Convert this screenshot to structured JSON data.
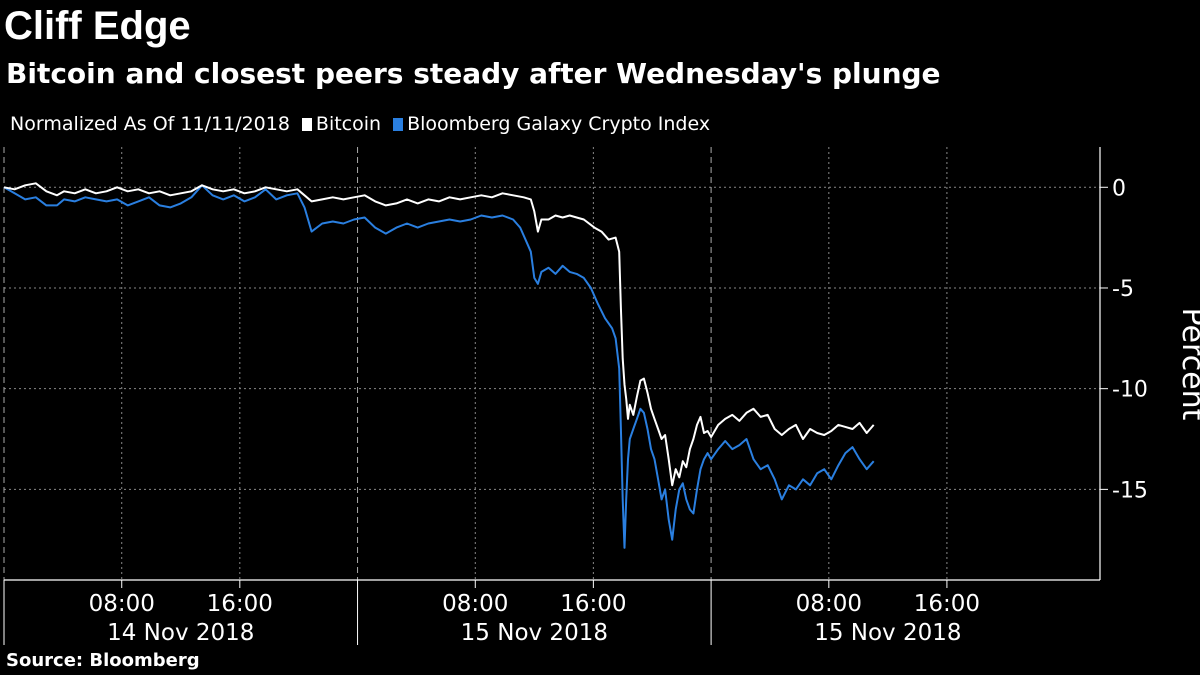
{
  "header": {
    "title": "Cliff Edge",
    "subtitle": "Bitcoin and closest peers steady after Wednesday's plunge"
  },
  "legend": {
    "note": "Normalized As Of 11/11/2018",
    "items": [
      {
        "label": "Bitcoin",
        "color": "#ffffff"
      },
      {
        "label": "Bloomberg Galaxy Crypto Index",
        "color": "#2a7fe0"
      }
    ]
  },
  "footer": {
    "source": "Source: Bloomberg"
  },
  "chart_data": {
    "type": "line",
    "ylabel": "Percent",
    "ylim": [
      -19.5,
      2
    ],
    "y_ticks": [
      0,
      -5,
      -10,
      -15
    ],
    "y_tick_labels": [
      "0",
      "-5",
      "-10",
      "-15"
    ],
    "x_range": [
      0,
      3.1
    ],
    "x_ticks": [
      {
        "x": 0.333,
        "label": "08:00"
      },
      {
        "x": 0.667,
        "label": "16:00"
      },
      {
        "x": 1.333,
        "label": "08:00"
      },
      {
        "x": 1.667,
        "label": "16:00"
      },
      {
        "x": 2.333,
        "label": "08:00"
      },
      {
        "x": 2.667,
        "label": "16:00"
      }
    ],
    "day_labels": [
      {
        "x": 0.5,
        "label": "14 Nov 2018"
      },
      {
        "x": 1.5,
        "label": "15 Nov 2018"
      },
      {
        "x": 2.5,
        "label": "15 Nov 2018"
      }
    ],
    "day_boundaries": [
      1.0,
      2.0
    ],
    "grid": true,
    "series": [
      {
        "name": "Bitcoin",
        "color": "#ffffff",
        "points": [
          [
            0,
            0
          ],
          [
            0.03,
            -0.1
          ],
          [
            0.06,
            0.1
          ],
          [
            0.09,
            0.2
          ],
          [
            0.12,
            -0.2
          ],
          [
            0.15,
            -0.4
          ],
          [
            0.17,
            -0.2
          ],
          [
            0.2,
            -0.3
          ],
          [
            0.23,
            -0.1
          ],
          [
            0.26,
            -0.3
          ],
          [
            0.29,
            -0.2
          ],
          [
            0.32,
            0
          ],
          [
            0.35,
            -0.2
          ],
          [
            0.38,
            -0.1
          ],
          [
            0.41,
            -0.3
          ],
          [
            0.44,
            -0.2
          ],
          [
            0.47,
            -0.4
          ],
          [
            0.5,
            -0.3
          ],
          [
            0.53,
            -0.2
          ],
          [
            0.56,
            0.1
          ],
          [
            0.59,
            -0.1
          ],
          [
            0.62,
            -0.2
          ],
          [
            0.65,
            -0.1
          ],
          [
            0.68,
            -0.3
          ],
          [
            0.71,
            -0.2
          ],
          [
            0.74,
            0
          ],
          [
            0.77,
            -0.1
          ],
          [
            0.8,
            -0.2
          ],
          [
            0.83,
            -0.1
          ],
          [
            0.85,
            -0.4
          ],
          [
            0.87,
            -0.7
          ],
          [
            0.9,
            -0.6
          ],
          [
            0.93,
            -0.5
          ],
          [
            0.96,
            -0.6
          ],
          [
            0.99,
            -0.5
          ],
          [
            1.02,
            -0.4
          ],
          [
            1.05,
            -0.7
          ],
          [
            1.08,
            -0.9
          ],
          [
            1.11,
            -0.8
          ],
          [
            1.14,
            -0.6
          ],
          [
            1.17,
            -0.8
          ],
          [
            1.2,
            -0.6
          ],
          [
            1.23,
            -0.7
          ],
          [
            1.26,
            -0.5
          ],
          [
            1.29,
            -0.6
          ],
          [
            1.32,
            -0.5
          ],
          [
            1.35,
            -0.4
          ],
          [
            1.38,
            -0.5
          ],
          [
            1.41,
            -0.3
          ],
          [
            1.44,
            -0.4
          ],
          [
            1.47,
            -0.5
          ],
          [
            1.49,
            -0.6
          ],
          [
            1.5,
            -1.2
          ],
          [
            1.51,
            -2.2
          ],
          [
            1.52,
            -1.6
          ],
          [
            1.54,
            -1.6
          ],
          [
            1.56,
            -1.4
          ],
          [
            1.58,
            -1.5
          ],
          [
            1.6,
            -1.4
          ],
          [
            1.62,
            -1.5
          ],
          [
            1.64,
            -1.6
          ],
          [
            1.67,
            -2.0
          ],
          [
            1.69,
            -2.2
          ],
          [
            1.71,
            -2.6
          ],
          [
            1.73,
            -2.5
          ],
          [
            1.74,
            -3.2
          ],
          [
            1.745,
            -6.0
          ],
          [
            1.75,
            -8.5
          ],
          [
            1.755,
            -9.8
          ],
          [
            1.76,
            -10.5
          ],
          [
            1.765,
            -11.5
          ],
          [
            1.77,
            -10.8
          ],
          [
            1.78,
            -11.3
          ],
          [
            1.79,
            -10.4
          ],
          [
            1.8,
            -9.6
          ],
          [
            1.81,
            -9.5
          ],
          [
            1.82,
            -10.2
          ],
          [
            1.83,
            -11.0
          ],
          [
            1.84,
            -11.5
          ],
          [
            1.85,
            -12.0
          ],
          [
            1.86,
            -12.5
          ],
          [
            1.87,
            -12.3
          ],
          [
            1.88,
            -13.5
          ],
          [
            1.89,
            -14.8
          ],
          [
            1.9,
            -14.0
          ],
          [
            1.91,
            -14.4
          ],
          [
            1.92,
            -13.6
          ],
          [
            1.93,
            -13.9
          ],
          [
            1.94,
            -13.0
          ],
          [
            1.95,
            -12.5
          ],
          [
            1.96,
            -11.8
          ],
          [
            1.97,
            -11.4
          ],
          [
            1.98,
            -12.2
          ],
          [
            1.99,
            -12.1
          ],
          [
            2.0,
            -12.4
          ],
          [
            2.02,
            -11.8
          ],
          [
            2.04,
            -11.5
          ],
          [
            2.06,
            -11.3
          ],
          [
            2.08,
            -11.6
          ],
          [
            2.1,
            -11.2
          ],
          [
            2.12,
            -11.0
          ],
          [
            2.14,
            -11.4
          ],
          [
            2.16,
            -11.3
          ],
          [
            2.18,
            -12.0
          ],
          [
            2.2,
            -12.3
          ],
          [
            2.22,
            -12.0
          ],
          [
            2.24,
            -11.8
          ],
          [
            2.26,
            -12.5
          ],
          [
            2.28,
            -12.0
          ],
          [
            2.3,
            -12.2
          ],
          [
            2.32,
            -12.3
          ],
          [
            2.34,
            -12.1
          ],
          [
            2.36,
            -11.8
          ],
          [
            2.38,
            -11.9
          ],
          [
            2.4,
            -12.0
          ],
          [
            2.42,
            -11.7
          ],
          [
            2.44,
            -12.2
          ],
          [
            2.46,
            -11.8
          ]
        ]
      },
      {
        "name": "Bloomberg Galaxy Crypto Index",
        "color": "#2a7fe0",
        "points": [
          [
            0,
            0
          ],
          [
            0.03,
            -0.3
          ],
          [
            0.06,
            -0.6
          ],
          [
            0.09,
            -0.5
          ],
          [
            0.12,
            -0.9
          ],
          [
            0.15,
            -0.9
          ],
          [
            0.17,
            -0.6
          ],
          [
            0.2,
            -0.7
          ],
          [
            0.23,
            -0.5
          ],
          [
            0.26,
            -0.6
          ],
          [
            0.29,
            -0.7
          ],
          [
            0.32,
            -0.6
          ],
          [
            0.35,
            -0.9
          ],
          [
            0.38,
            -0.7
          ],
          [
            0.41,
            -0.5
          ],
          [
            0.44,
            -0.9
          ],
          [
            0.47,
            -1.0
          ],
          [
            0.5,
            -0.8
          ],
          [
            0.53,
            -0.5
          ],
          [
            0.56,
            0.1
          ],
          [
            0.59,
            -0.4
          ],
          [
            0.62,
            -0.6
          ],
          [
            0.65,
            -0.4
          ],
          [
            0.68,
            -0.7
          ],
          [
            0.71,
            -0.5
          ],
          [
            0.74,
            -0.1
          ],
          [
            0.77,
            -0.6
          ],
          [
            0.8,
            -0.4
          ],
          [
            0.83,
            -0.3
          ],
          [
            0.85,
            -1.0
          ],
          [
            0.87,
            -2.2
          ],
          [
            0.9,
            -1.8
          ],
          [
            0.93,
            -1.7
          ],
          [
            0.96,
            -1.8
          ],
          [
            0.99,
            -1.6
          ],
          [
            1.02,
            -1.5
          ],
          [
            1.05,
            -2.0
          ],
          [
            1.08,
            -2.3
          ],
          [
            1.11,
            -2.0
          ],
          [
            1.14,
            -1.8
          ],
          [
            1.17,
            -2.0
          ],
          [
            1.2,
            -1.8
          ],
          [
            1.23,
            -1.7
          ],
          [
            1.26,
            -1.6
          ],
          [
            1.29,
            -1.7
          ],
          [
            1.32,
            -1.6
          ],
          [
            1.35,
            -1.4
          ],
          [
            1.38,
            -1.5
          ],
          [
            1.41,
            -1.4
          ],
          [
            1.44,
            -1.6
          ],
          [
            1.46,
            -2.0
          ],
          [
            1.48,
            -2.8
          ],
          [
            1.49,
            -3.2
          ],
          [
            1.5,
            -4.5
          ],
          [
            1.51,
            -4.8
          ],
          [
            1.52,
            -4.2
          ],
          [
            1.54,
            -4.0
          ],
          [
            1.56,
            -4.3
          ],
          [
            1.58,
            -3.9
          ],
          [
            1.6,
            -4.2
          ],
          [
            1.62,
            -4.3
          ],
          [
            1.64,
            -4.5
          ],
          [
            1.66,
            -5.0
          ],
          [
            1.68,
            -5.8
          ],
          [
            1.7,
            -6.5
          ],
          [
            1.72,
            -7.0
          ],
          [
            1.73,
            -7.5
          ],
          [
            1.74,
            -9.0
          ],
          [
            1.745,
            -12.0
          ],
          [
            1.75,
            -15.5
          ],
          [
            1.755,
            -17.9
          ],
          [
            1.76,
            -15.5
          ],
          [
            1.765,
            -13.5
          ],
          [
            1.77,
            -12.5
          ],
          [
            1.78,
            -12.0
          ],
          [
            1.79,
            -11.5
          ],
          [
            1.8,
            -11.0
          ],
          [
            1.81,
            -11.2
          ],
          [
            1.82,
            -12.0
          ],
          [
            1.83,
            -13.0
          ],
          [
            1.84,
            -13.5
          ],
          [
            1.85,
            -14.5
          ],
          [
            1.86,
            -15.5
          ],
          [
            1.87,
            -15.0
          ],
          [
            1.88,
            -16.5
          ],
          [
            1.89,
            -17.5
          ],
          [
            1.9,
            -16.0
          ],
          [
            1.91,
            -15.0
          ],
          [
            1.92,
            -14.7
          ],
          [
            1.93,
            -15.5
          ],
          [
            1.94,
            -16.0
          ],
          [
            1.95,
            -16.2
          ],
          [
            1.96,
            -15.0
          ],
          [
            1.97,
            -14.0
          ],
          [
            1.98,
            -13.5
          ],
          [
            1.99,
            -13.2
          ],
          [
            2.0,
            -13.5
          ],
          [
            2.02,
            -13.0
          ],
          [
            2.04,
            -12.6
          ],
          [
            2.06,
            -13.0
          ],
          [
            2.08,
            -12.8
          ],
          [
            2.1,
            -12.5
          ],
          [
            2.12,
            -13.5
          ],
          [
            2.14,
            -14.0
          ],
          [
            2.16,
            -13.8
          ],
          [
            2.18,
            -14.5
          ],
          [
            2.2,
            -15.5
          ],
          [
            2.22,
            -14.8
          ],
          [
            2.24,
            -15.0
          ],
          [
            2.26,
            -14.5
          ],
          [
            2.28,
            -14.8
          ],
          [
            2.3,
            -14.2
          ],
          [
            2.32,
            -14.0
          ],
          [
            2.34,
            -14.5
          ],
          [
            2.36,
            -13.8
          ],
          [
            2.38,
            -13.2
          ],
          [
            2.4,
            -12.9
          ],
          [
            2.42,
            -13.5
          ],
          [
            2.44,
            -14.0
          ],
          [
            2.46,
            -13.6
          ]
        ]
      }
    ]
  }
}
